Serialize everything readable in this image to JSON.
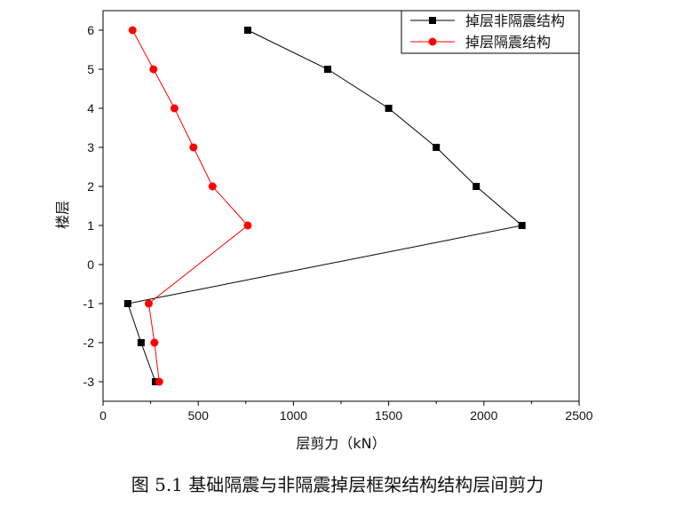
{
  "chart_data": {
    "type": "line",
    "title": "",
    "xlabel": "层剪力（kN）",
    "ylabel": "楼层",
    "xlim": [
      0,
      2500
    ],
    "ylim": [
      -3.5,
      6.5
    ],
    "x_ticks": [
      0,
      500,
      1000,
      1500,
      2000,
      2500
    ],
    "y_ticks": [
      -3,
      -2,
      -1,
      0,
      1,
      2,
      3,
      4,
      5,
      6
    ],
    "legend_position": "top-right",
    "series": [
      {
        "name": "掉层非隔震结构",
        "color": "#000000",
        "marker": "square",
        "points": [
          {
            "x": 275,
            "y": -3
          },
          {
            "x": 200,
            "y": -2
          },
          {
            "x": 130,
            "y": -1
          },
          {
            "x": 2200,
            "y": 1
          },
          {
            "x": 1960,
            "y": 2
          },
          {
            "x": 1750,
            "y": 3
          },
          {
            "x": 1500,
            "y": 4
          },
          {
            "x": 1180,
            "y": 5
          },
          {
            "x": 760,
            "y": 6
          }
        ]
      },
      {
        "name": "掉层隔震结构",
        "color": "#ff0000",
        "marker": "circle",
        "points": [
          {
            "x": 295,
            "y": -3
          },
          {
            "x": 270,
            "y": -2
          },
          {
            "x": 240,
            "y": -1
          },
          {
            "x": 760,
            "y": 1
          },
          {
            "x": 575,
            "y": 2
          },
          {
            "x": 475,
            "y": 3
          },
          {
            "x": 375,
            "y": 4
          },
          {
            "x": 265,
            "y": 5
          },
          {
            "x": 155,
            "y": 6
          }
        ]
      }
    ]
  },
  "caption": "图 5.1 基础隔震与非隔震掉层框架结构结构层间剪力"
}
